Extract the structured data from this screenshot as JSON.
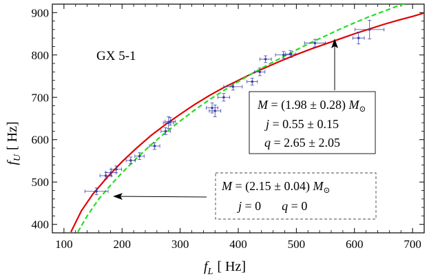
{
  "chart_data": {
    "type": "scatter",
    "title": "",
    "xlabel": {
      "main": "f",
      "sub": "L",
      "unit": "[ Hz]"
    },
    "ylabel": {
      "main": "f",
      "sub": "U",
      "unit": "[ Hz]"
    },
    "xlim": [
      80,
      720
    ],
    "ylim": [
      380,
      920
    ],
    "xticks": [
      100,
      200,
      300,
      400,
      500,
      600,
      700
    ],
    "yticks": [
      400,
      500,
      600,
      700,
      800,
      900
    ],
    "grid": false,
    "source_label": "GX 5-1",
    "series": [
      {
        "kind": "points",
        "color": "#3b3fa8",
        "points": [
          {
            "x": 156,
            "y": 478,
            "xerr": 20,
            "yerr": 8
          },
          {
            "x": 172,
            "y": 515,
            "xerr": 10,
            "yerr": 8
          },
          {
            "x": 181,
            "y": 522,
            "xerr": 9,
            "yerr": 8
          },
          {
            "x": 190,
            "y": 530,
            "xerr": 9,
            "yerr": 8
          },
          {
            "x": 215,
            "y": 551,
            "xerr": 8,
            "yerr": 8
          },
          {
            "x": 230,
            "y": 561,
            "xerr": 8,
            "yerr": 8
          },
          {
            "x": 256,
            "y": 585,
            "xerr": 9,
            "yerr": 8
          },
          {
            "x": 275,
            "y": 620,
            "xerr": 8,
            "yerr": 8
          },
          {
            "x": 280,
            "y": 640,
            "xerr": 9,
            "yerr": 14
          },
          {
            "x": 283,
            "y": 643,
            "xerr": 9,
            "yerr": 9
          },
          {
            "x": 355,
            "y": 675,
            "xerr": 10,
            "yerr": 12
          },
          {
            "x": 360,
            "y": 668,
            "xerr": 10,
            "yerr": 14
          },
          {
            "x": 375,
            "y": 700,
            "xerr": 10,
            "yerr": 9
          },
          {
            "x": 391,
            "y": 725,
            "xerr": 16,
            "yerr": 8
          },
          {
            "x": 424,
            "y": 737,
            "xerr": 9,
            "yerr": 8
          },
          {
            "x": 437,
            "y": 760,
            "xerr": 9,
            "yerr": 9
          },
          {
            "x": 447,
            "y": 790,
            "xerr": 10,
            "yerr": 8
          },
          {
            "x": 478,
            "y": 800,
            "xerr": 14,
            "yerr": 8
          },
          {
            "x": 490,
            "y": 802,
            "xerr": 9,
            "yerr": 8
          },
          {
            "x": 532,
            "y": 828,
            "xerr": 18,
            "yerr": 9
          },
          {
            "x": 607,
            "y": 840,
            "xerr": 10,
            "yerr": 14
          },
          {
            "x": 626,
            "y": 860,
            "xerr": 25,
            "yerr": 22
          }
        ]
      },
      {
        "kind": "line",
        "style": "solid",
        "color": "#e00000",
        "x": [
          112,
          130,
          150,
          175,
          200,
          225,
          250,
          275,
          300,
          325,
          350,
          375,
          400,
          425,
          450,
          475,
          500,
          525,
          550,
          575,
          600,
          625,
          650,
          675,
          700,
          720
        ],
        "y": [
          382,
          432,
          472,
          512,
          548,
          580,
          610,
          636,
          660,
          683,
          704,
          723,
          740,
          757,
          772,
          787,
          801,
          814,
          826,
          838,
          850,
          861,
          872,
          882,
          891,
          899
        ]
      },
      {
        "kind": "line",
        "style": "dashed",
        "color": "#22dd22",
        "x": [
          124,
          140,
          160,
          180,
          200,
          225,
          250,
          275,
          300,
          325,
          350,
          375,
          400,
          425,
          450,
          475,
          500,
          525,
          550,
          575,
          600,
          625,
          650,
          675,
          695
        ],
        "y": [
          382,
          420,
          460,
          492,
          522,
          556,
          588,
          617,
          644,
          670,
          694,
          716,
          737,
          757,
          776,
          794,
          812,
          829,
          845,
          861,
          876,
          890,
          903,
          916,
          925
        ]
      }
    ],
    "annotations": [
      {
        "id": "red-fit",
        "box": "solid",
        "lines": [
          [
            "M",
            " = (1.98 ± 0.28) ",
            "M",
            "⊙"
          ],
          [
            "j",
            " = 0.55 ± 0.15"
          ],
          [
            "q",
            " = 2.65 ± 2.05"
          ]
        ],
        "arrow_target": {
          "x": 560,
          "y": 840
        }
      },
      {
        "id": "green-fit",
        "box": "dashed",
        "lines": [
          [
            "M",
            " = (2.15 ± 0.04) ",
            "M",
            "⊙"
          ],
          [
            "j",
            " = 0",
            "q",
            " = 0"
          ]
        ],
        "arrow_target": {
          "x": 168,
          "y": 485
        }
      }
    ]
  }
}
